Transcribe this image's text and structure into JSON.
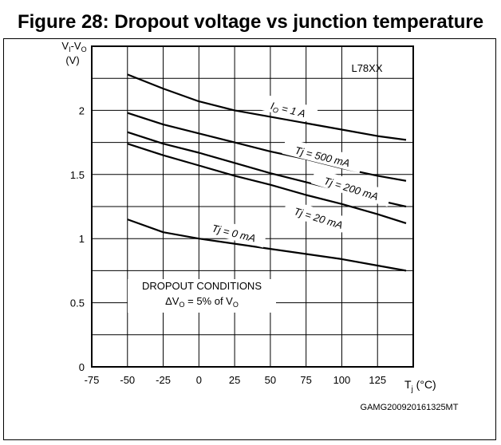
{
  "figure_title": "Figure 28: Dropout voltage vs junction temperature",
  "figure_code": "GAMG200920161325MT",
  "chart_data": {
    "type": "line",
    "title": "Figure 28: Dropout voltage vs junction temperature",
    "xlabel": "Tj (°C)",
    "ylabel": "VI-VO (V)",
    "xlim": [
      -75,
      150
    ],
    "ylim": [
      0,
      2.5
    ],
    "grid": true,
    "x_ticks": [
      -75,
      -50,
      -25,
      0,
      25,
      50,
      75,
      100,
      125
    ],
    "y_ticks": [
      0,
      0.5,
      1,
      1.5,
      2
    ],
    "device_label": "L78XX",
    "conditions": [
      "DROPOUT CONDITIONS",
      "ΔVO = 5% of VO"
    ],
    "series": [
      {
        "name": "IO = 1 A",
        "x": [
          -50,
          -25,
          0,
          25,
          50,
          75,
          100,
          125,
          145
        ],
        "y": [
          2.28,
          2.17,
          2.07,
          2.0,
          1.95,
          1.9,
          1.85,
          1.8,
          1.77
        ]
      },
      {
        "name": "Tj = 500 mA",
        "x": [
          -50,
          -25,
          0,
          25,
          50,
          75,
          100,
          125,
          145
        ],
        "y": [
          1.98,
          1.89,
          1.82,
          1.75,
          1.68,
          1.62,
          1.55,
          1.49,
          1.45
        ]
      },
      {
        "name": "Tj = 200 mA",
        "x": [
          -50,
          -25,
          0,
          25,
          50,
          75,
          100,
          125,
          145
        ],
        "y": [
          1.83,
          1.74,
          1.67,
          1.59,
          1.51,
          1.44,
          1.37,
          1.3,
          1.25
        ]
      },
      {
        "name": "Tj = 20 mA",
        "x": [
          -50,
          -25,
          0,
          25,
          50,
          75,
          100,
          125,
          145
        ],
        "y": [
          1.74,
          1.65,
          1.57,
          1.49,
          1.42,
          1.34,
          1.27,
          1.19,
          1.12
        ]
      },
      {
        "name": "Tj = 0 mA",
        "x": [
          -50,
          -25,
          0,
          25,
          50,
          75,
          100,
          125,
          145
        ],
        "y": [
          1.15,
          1.05,
          1.0,
          0.96,
          0.92,
          0.88,
          0.84,
          0.79,
          0.75
        ]
      }
    ]
  }
}
